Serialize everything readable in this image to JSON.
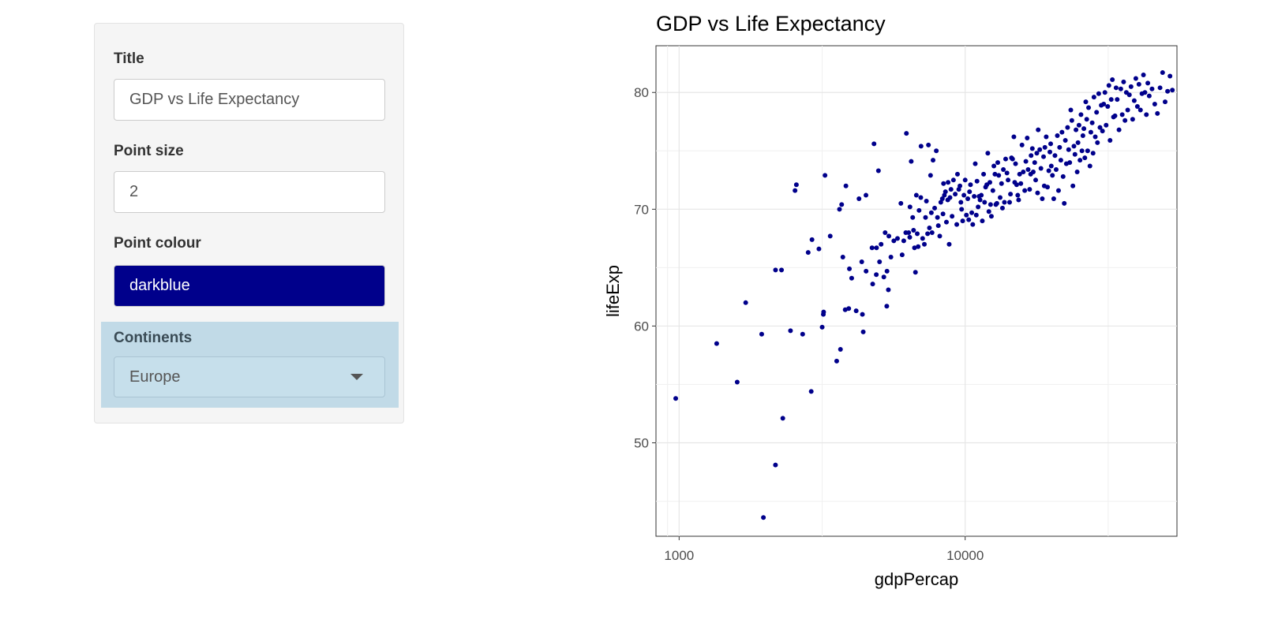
{
  "sidebar": {
    "title_label": "Title",
    "title_value": "GDP vs Life Expectancy",
    "point_size_label": "Point size",
    "point_size_value": "2",
    "point_colour_label": "Point colour",
    "point_colour_value": "darkblue",
    "continents_label": "Continents",
    "continents_value": "Europe"
  },
  "colors": {
    "point": "#00008b",
    "highlight": "#c1dae7"
  },
  "chart_data": {
    "type": "scatter",
    "title": "GDP vs Life Expectancy",
    "xlabel": "gdpPercap",
    "ylabel": "lifeExp",
    "xscale": "log10",
    "xlim": [
      830,
      55000
    ],
    "ylim": [
      42,
      84
    ],
    "xticks": [
      1000,
      10000
    ],
    "xtick_labels": [
      "1000",
      "10000"
    ],
    "yticks": [
      50,
      60,
      70,
      80
    ],
    "ytick_labels": [
      "50",
      "60",
      "70",
      "80"
    ],
    "grid": true,
    "legend": "none",
    "points": [
      [
        973,
        53.8
      ],
      [
        1353,
        58.5
      ],
      [
        1596,
        55.2
      ],
      [
        1709,
        62.0
      ],
      [
        1944,
        59.3
      ],
      [
        1971,
        43.6
      ],
      [
        2172,
        48.1
      ],
      [
        2173,
        64.8
      ],
      [
        2280,
        64.8
      ],
      [
        2304,
        52.1
      ],
      [
        2451,
        59.6
      ],
      [
        2542,
        71.6
      ],
      [
        2570,
        72.1
      ],
      [
        2703,
        59.3
      ],
      [
        2826,
        66.3
      ],
      [
        2896,
        54.4
      ],
      [
        2914,
        67.4
      ],
      [
        3081,
        66.6
      ],
      [
        3163,
        59.9
      ],
      [
        3193,
        61.0
      ],
      [
        3200,
        61.2
      ],
      [
        3236,
        72.9
      ],
      [
        3374,
        67.7
      ],
      [
        3555,
        57.0
      ],
      [
        3636,
        70.0
      ],
      [
        3665,
        58.0
      ],
      [
        3700,
        70.4
      ],
      [
        3736,
        65.9
      ],
      [
        3807,
        61.4
      ],
      [
        3829,
        72.0
      ],
      [
        3917,
        61.5
      ],
      [
        3938,
        64.9
      ],
      [
        4011,
        64.1
      ],
      [
        4159,
        61.3
      ],
      [
        4255,
        70.9
      ],
      [
        4350,
        65.5
      ],
      [
        4373,
        61.0
      ],
      [
        4402,
        59.5
      ],
      [
        4500,
        71.2
      ],
      [
        4504,
        64.7
      ],
      [
        4725,
        66.7
      ],
      [
        4750,
        63.6
      ],
      [
        4801,
        75.6
      ],
      [
        4890,
        64.4
      ],
      [
        4899,
        66.7
      ],
      [
        4975,
        73.3
      ],
      [
        5019,
        65.5
      ],
      [
        5082,
        67.0
      ],
      [
        5196,
        64.2
      ],
      [
        5250,
        68.0
      ],
      [
        5320,
        61.7
      ],
      [
        5330,
        64.7
      ],
      [
        5389,
        63.1
      ],
      [
        5411,
        67.7
      ],
      [
        5500,
        65.9
      ],
      [
        5631,
        67.3
      ],
      [
        5800,
        67.5
      ],
      [
        5960,
        70.5
      ],
      [
        6021,
        66.1
      ],
      [
        6100,
        67.3
      ],
      [
        6200,
        68.0
      ],
      [
        6231,
        76.5
      ],
      [
        6346,
        68.0
      ],
      [
        6401,
        67.6
      ],
      [
        6413,
        70.2
      ],
      [
        6477,
        74.1
      ],
      [
        6555,
        69.3
      ],
      [
        6600,
        68.2
      ],
      [
        6650,
        66.7
      ],
      [
        6702,
        64.6
      ],
      [
        6750,
        71.2
      ],
      [
        6800,
        67.9
      ],
      [
        6850,
        66.8
      ],
      [
        6900,
        69.9
      ],
      [
        6996,
        71.0
      ],
      [
        7010,
        75.4
      ],
      [
        7100,
        67.5
      ],
      [
        7200,
        67.0
      ],
      [
        7268,
        69.3
      ],
      [
        7320,
        70.7
      ],
      [
        7389,
        67.9
      ],
      [
        7441,
        75.5
      ],
      [
        7500,
        68.4
      ],
      [
        7567,
        72.9
      ],
      [
        7617,
        69.7
      ],
      [
        7660,
        68.0
      ],
      [
        7722,
        74.2
      ],
      [
        7822,
        70.1
      ],
      [
        7926,
        75.0
      ],
      [
        8001,
        69.3
      ],
      [
        8057,
        68.6
      ],
      [
        8149,
        67.7
      ],
      [
        8219,
        70.6
      ],
      [
        8321,
        70.9
      ],
      [
        8366,
        69.6
      ],
      [
        8400,
        72.2
      ],
      [
        8458,
        71.2
      ],
      [
        8531,
        71.5
      ],
      [
        8600,
        68.9
      ],
      [
        8692,
        70.8
      ],
      [
        8716,
        72.3
      ],
      [
        8793,
        67.0
      ],
      [
        8850,
        71.0
      ],
      [
        8921,
        71.7
      ],
      [
        9000,
        69.4
      ],
      [
        9100,
        72.5
      ],
      [
        9230,
        71.3
      ],
      [
        9345,
        68.7
      ],
      [
        9400,
        73.0
      ],
      [
        9500,
        71.7
      ],
      [
        9586,
        72.0
      ],
      [
        9661,
        70.6
      ],
      [
        9717,
        70.0
      ],
      [
        9800,
        69.0
      ],
      [
        9900,
        71.2
      ],
      [
        10000,
        72.5
      ],
      [
        10098,
        69.5
      ],
      [
        10215,
        70.9
      ],
      [
        10291,
        69.1
      ],
      [
        10358,
        71.5
      ],
      [
        10438,
        72.1
      ],
      [
        10545,
        69.7
      ],
      [
        10629,
        68.7
      ],
      [
        10753,
        71.1
      ],
      [
        10846,
        73.9
      ],
      [
        10937,
        69.5
      ],
      [
        11000,
        72.4
      ],
      [
        11100,
        70.2
      ],
      [
        11182,
        71.1
      ],
      [
        11272,
        70.8
      ],
      [
        11386,
        71.2
      ],
      [
        11480,
        69.0
      ],
      [
        11599,
        73.0
      ],
      [
        11690,
        70.6
      ],
      [
        11789,
        71.9
      ],
      [
        11900,
        72.1
      ],
      [
        12000,
        74.8
      ],
      [
        12102,
        69.8
      ],
      [
        12200,
        72.3
      ],
      [
        12267,
        70.4
      ],
      [
        12350,
        69.4
      ],
      [
        12500,
        71.6
      ],
      [
        12600,
        73.7
      ],
      [
        12708,
        73.0
      ],
      [
        12800,
        70.4
      ],
      [
        12906,
        70.5
      ],
      [
        13000,
        74.0
      ],
      [
        13100,
        72.9
      ],
      [
        13250,
        71.0
      ],
      [
        13400,
        72.2
      ],
      [
        13500,
        70.1
      ],
      [
        13600,
        73.4
      ],
      [
        13716,
        70.6
      ],
      [
        13851,
        74.3
      ],
      [
        14000,
        73.1
      ],
      [
        14124,
        72.5
      ],
      [
        14300,
        70.6
      ],
      [
        14400,
        71.3
      ],
      [
        14520,
        74.4
      ],
      [
        14644,
        74.3
      ],
      [
        14800,
        76.2
      ],
      [
        14900,
        72.3
      ],
      [
        15000,
        73.9
      ],
      [
        15133,
        72.1
      ],
      [
        15270,
        71.2
      ],
      [
        15377,
        70.8
      ],
      [
        15500,
        73.0
      ],
      [
        15650,
        72.2
      ],
      [
        15800,
        75.5
      ],
      [
        15964,
        73.2
      ],
      [
        16150,
        71.6
      ],
      [
        16300,
        74.1
      ],
      [
        16477,
        76.1
      ],
      [
        16600,
        73.4
      ],
      [
        16800,
        71.7
      ],
      [
        16939,
        73.0
      ],
      [
        17000,
        74.6
      ],
      [
        17171,
        75.2
      ],
      [
        17300,
        73.2
      ],
      [
        17500,
        74.0
      ],
      [
        17638,
        72.5
      ],
      [
        17800,
        74.8
      ],
      [
        17913,
        71.4
      ],
      [
        18000,
        76.8
      ],
      [
        18224,
        75.1
      ],
      [
        18400,
        73.5
      ],
      [
        18600,
        70.9
      ],
      [
        18794,
        74.5
      ],
      [
        18900,
        72.0
      ],
      [
        19000,
        75.3
      ],
      [
        19200,
        76.2
      ],
      [
        19400,
        71.9
      ],
      [
        19600,
        73.3
      ],
      [
        19776,
        74.9
      ],
      [
        19900,
        75.6
      ],
      [
        20000,
        73.7
      ],
      [
        20182,
        72.9
      ],
      [
        20400,
        70.9
      ],
      [
        20600,
        74.6
      ],
      [
        20800,
        73.4
      ],
      [
        21000,
        76.3
      ],
      [
        21200,
        71.6
      ],
      [
        21389,
        75.3
      ],
      [
        21600,
        74.2
      ],
      [
        21800,
        76.6
      ],
      [
        22000,
        72.8
      ],
      [
        22200,
        70.5
      ],
      [
        22400,
        75.9
      ],
      [
        22580,
        73.9
      ],
      [
        22800,
        77.0
      ],
      [
        23000,
        75.1
      ],
      [
        23200,
        74.0
      ],
      [
        23400,
        78.5
      ],
      [
        23600,
        77.6
      ],
      [
        23800,
        72.0
      ],
      [
        24000,
        75.4
      ],
      [
        24200,
        74.7
      ],
      [
        24400,
        76.8
      ],
      [
        24634,
        73.2
      ],
      [
        24800,
        75.7
      ],
      [
        25000,
        77.2
      ],
      [
        25200,
        74.2
      ],
      [
        25400,
        78.1
      ],
      [
        25600,
        75.0
      ],
      [
        25800,
        76.3
      ],
      [
        26000,
        76.9
      ],
      [
        26200,
        74.4
      ],
      [
        26400,
        79.2
      ],
      [
        26600,
        77.7
      ],
      [
        26800,
        75.0
      ],
      [
        27000,
        78.7
      ],
      [
        27300,
        73.7
      ],
      [
        27500,
        76.6
      ],
      [
        27800,
        77.4
      ],
      [
        28000,
        74.8
      ],
      [
        28200,
        79.6
      ],
      [
        28500,
        76.2
      ],
      [
        28800,
        78.3
      ],
      [
        29000,
        75.7
      ],
      [
        29300,
        79.9
      ],
      [
        29600,
        77.0
      ],
      [
        29900,
        78.9
      ],
      [
        30200,
        76.7
      ],
      [
        30500,
        79.0
      ],
      [
        30800,
        80.0
      ],
      [
        31100,
        77.2
      ],
      [
        31500,
        78.8
      ],
      [
        31800,
        80.6
      ],
      [
        32100,
        75.9
      ],
      [
        32400,
        79.4
      ],
      [
        32700,
        81.1
      ],
      [
        33000,
        77.9
      ],
      [
        33400,
        78.0
      ],
      [
        33700,
        80.4
      ],
      [
        34000,
        79.4
      ],
      [
        34500,
        76.8
      ],
      [
        35000,
        80.3
      ],
      [
        35400,
        78.1
      ],
      [
        35800,
        80.9
      ],
      [
        36200,
        77.6
      ],
      [
        36600,
        80.0
      ],
      [
        37000,
        78.5
      ],
      [
        37500,
        79.8
      ],
      [
        38000,
        80.5
      ],
      [
        38500,
        77.7
      ],
      [
        39000,
        79.3
      ],
      [
        39500,
        81.2
      ],
      [
        40000,
        78.8
      ],
      [
        40500,
        80.7
      ],
      [
        41000,
        78.5
      ],
      [
        41500,
        79.9
      ],
      [
        42000,
        81.5
      ],
      [
        42500,
        80.0
      ],
      [
        43000,
        78.1
      ],
      [
        43500,
        80.8
      ],
      [
        44000,
        79.7
      ],
      [
        45000,
        80.3
      ],
      [
        46000,
        79.0
      ],
      [
        47000,
        78.2
      ],
      [
        48000,
        80.4
      ],
      [
        49000,
        81.7
      ],
      [
        50000,
        79.2
      ],
      [
        51000,
        80.1
      ],
      [
        52000,
        81.4
      ],
      [
        53000,
        80.2
      ]
    ]
  }
}
